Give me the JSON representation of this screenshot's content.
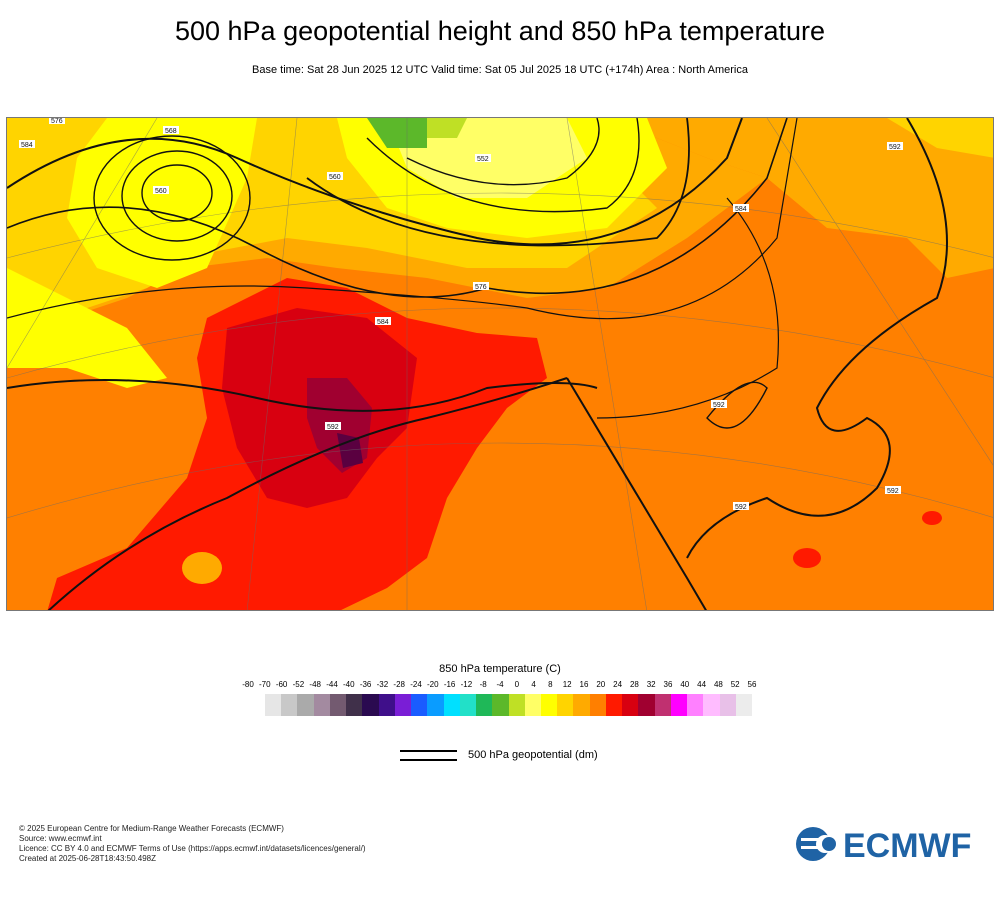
{
  "header": {
    "title": "500 hPa geopotential height and 850 hPa temperature",
    "subtitle": "Base time: Sat 28 Jun 2025 12 UTC Valid time: Sat 05 Jul 2025 18 UTC (+174h) Area : North America"
  },
  "map": {
    "contour_labels": [
      "576",
      "584",
      "568",
      "560",
      "552",
      "560",
      "576",
      "584",
      "584",
      "592",
      "592",
      "592",
      "592",
      "592"
    ]
  },
  "legend": {
    "title": "850 hPa temperature (C)",
    "ticks": [
      "-80",
      "-70",
      "-60",
      "-52",
      "-48",
      "-44",
      "-40",
      "-36",
      "-32",
      "-28",
      "-24",
      "-20",
      "-16",
      "-12",
      "-8",
      "-4",
      "0",
      "4",
      "8",
      "12",
      "16",
      "20",
      "24",
      "28",
      "32",
      "36",
      "40",
      "44",
      "48",
      "52",
      "56"
    ],
    "colors": [
      "#e6e6e6",
      "#c8c8c8",
      "#aaaaaa",
      "#a38aa0",
      "#735a70",
      "#40304a",
      "#2a0a50",
      "#3f0f8a",
      "#7a1ed6",
      "#1a5cff",
      "#0a9cff",
      "#00e0ff",
      "#22e0c8",
      "#1fb858",
      "#5cb82a",
      "#bfe025",
      "#ffff66",
      "#ffff00",
      "#ffd400",
      "#ffaa00",
      "#ff7f00",
      "#ff1a00",
      "#d80010",
      "#a00030",
      "#c03070",
      "#ff00ff",
      "#ff80ff",
      "#ffbcff",
      "#e8c0e8",
      "#ececec"
    ],
    "contour_label": "500 hPa geopotential (dm)"
  },
  "credits": {
    "line1": "© 2025 European Centre for Medium-Range Weather Forecasts (ECMWF)",
    "line2": "Source: www.ecmwf.int",
    "line3": "Licence: CC BY 4.0 and ECMWF Terms of Use (https://apps.ecmwf.int/datasets/licences/general/)",
    "line4": "Created at 2025-06-28T18:43:50.498Z"
  },
  "logo": {
    "text": "ECMWF",
    "color": "#1f63a5"
  }
}
